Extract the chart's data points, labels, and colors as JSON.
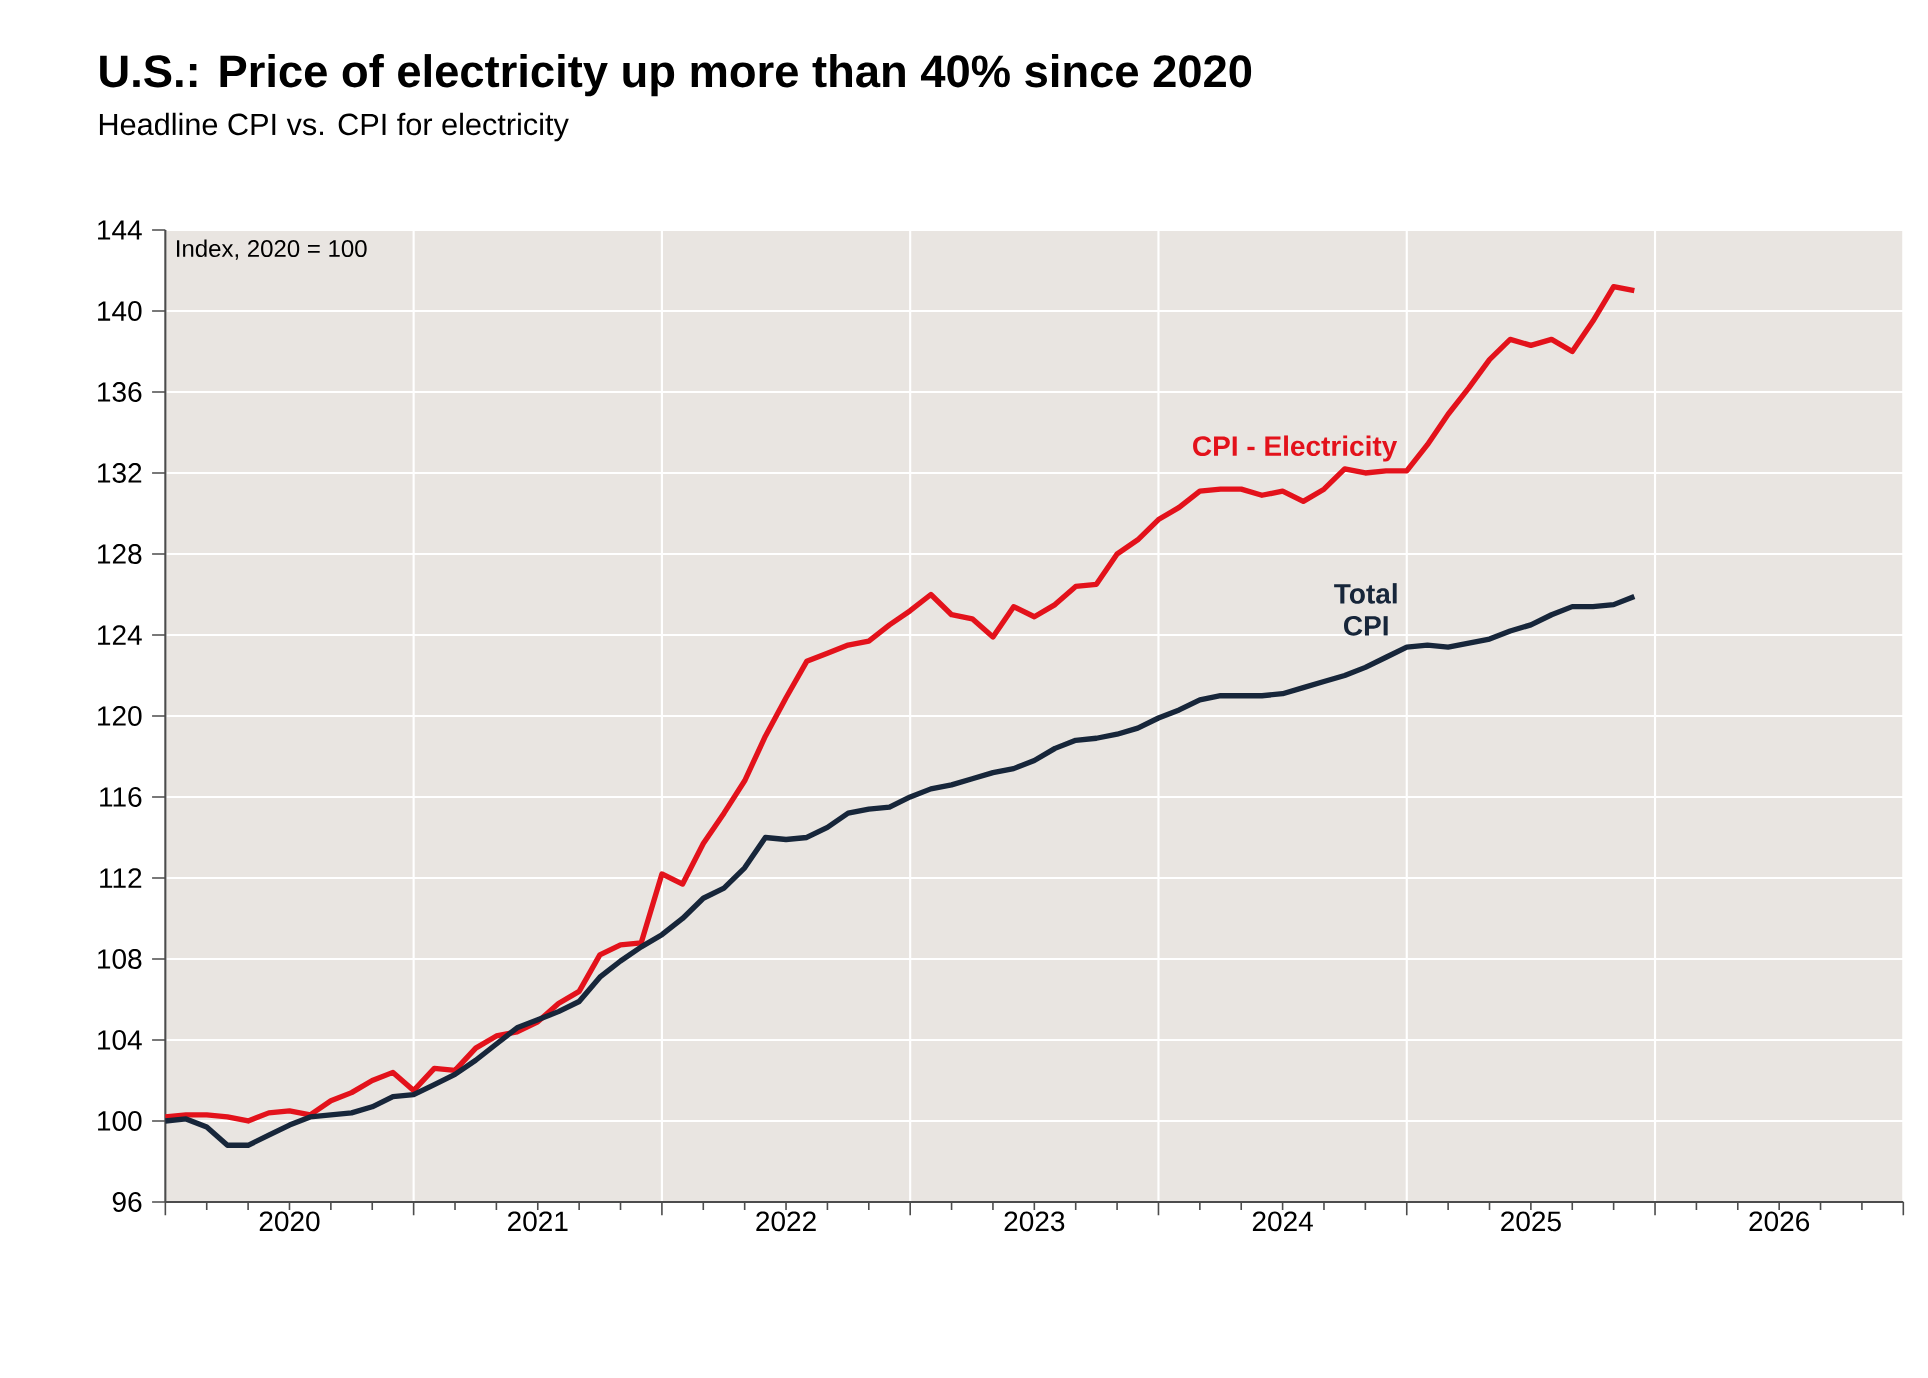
{
  "chart_data": {
    "type": "line",
    "title": "U.S.: Price of electricity up more than 40% since 2020",
    "subtitle": "Headline CPI vs. CPI for electricity",
    "annotations": [
      "Index, 2020 = 100"
    ],
    "x": [
      "2020-01",
      "2020-02",
      "2020-03",
      "2020-04",
      "2020-05",
      "2020-06",
      "2020-07",
      "2020-08",
      "2020-09",
      "2020-10",
      "2020-11",
      "2020-12",
      "2021-01",
      "2021-02",
      "2021-03",
      "2021-04",
      "2021-05",
      "2021-06",
      "2021-07",
      "2021-08",
      "2021-09",
      "2021-10",
      "2021-11",
      "2021-12",
      "2022-01",
      "2022-02",
      "2022-03",
      "2022-04",
      "2022-05",
      "2022-06",
      "2022-07",
      "2022-08",
      "2022-09",
      "2022-10",
      "2022-11",
      "2022-12",
      "2023-01",
      "2023-02",
      "2023-03",
      "2023-04",
      "2023-05",
      "2023-06",
      "2023-07",
      "2023-08",
      "2023-09",
      "2023-10",
      "2023-11",
      "2023-12",
      "2024-01",
      "2024-02",
      "2024-03",
      "2024-04",
      "2024-05",
      "2024-06",
      "2024-07",
      "2024-08",
      "2024-09",
      "2024-10",
      "2024-11",
      "2024-12",
      "2025-01",
      "2025-02",
      "2025-03",
      "2025-04",
      "2025-05",
      "2025-06",
      "2025-07",
      "2025-08",
      "2025-09",
      "2025-10",
      "2025-11",
      "2025-12"
    ],
    "series": [
      {
        "name": "CPI - Electricity",
        "color": "#e3121b",
        "values": [
          100.2,
          100.3,
          100.3,
          100.2,
          100.0,
          100.4,
          100.5,
          100.3,
          101.0,
          101.4,
          102.0,
          102.4,
          101.5,
          102.6,
          102.5,
          103.6,
          104.2,
          104.4,
          104.9,
          105.8,
          106.4,
          108.2,
          108.7,
          108.8,
          112.2,
          111.7,
          113.7,
          115.2,
          116.8,
          119.0,
          120.9,
          122.7,
          123.1,
          123.5,
          123.7,
          124.5,
          125.2,
          126.0,
          125.0,
          124.8,
          123.9,
          125.4,
          124.9,
          125.5,
          126.4,
          126.5,
          128.0,
          128.7,
          129.7,
          130.3,
          131.1,
          131.2,
          131.2,
          130.9,
          131.1,
          130.6,
          131.2,
          132.2,
          132.0,
          132.1,
          132.1,
          133.4,
          134.9,
          136.2,
          137.6,
          138.6,
          138.3,
          138.6,
          138.0,
          139.5,
          141.2,
          141.0
        ]
      },
      {
        "name": "Total CPI",
        "color": "#17263a",
        "values": [
          100.0,
          100.1,
          99.7,
          98.8,
          98.8,
          99.3,
          99.8,
          100.2,
          100.3,
          100.4,
          100.7,
          101.2,
          101.3,
          101.8,
          102.3,
          103.0,
          103.8,
          104.6,
          105.0,
          105.4,
          105.9,
          107.1,
          107.9,
          108.6,
          109.2,
          110.0,
          111.0,
          111.5,
          112.5,
          114.0,
          113.9,
          114.0,
          114.5,
          115.2,
          115.4,
          115.5,
          116.0,
          116.4,
          116.6,
          116.9,
          117.2,
          117.4,
          117.8,
          118.4,
          118.8,
          118.9,
          119.1,
          119.4,
          119.9,
          120.3,
          120.8,
          121.0,
          121.0,
          121.0,
          121.1,
          121.4,
          121.7,
          122.0,
          122.4,
          122.9,
          123.4,
          123.5,
          123.4,
          123.6,
          123.8,
          124.2,
          124.5,
          125.0,
          125.4,
          125.4,
          125.5,
          125.9
        ]
      }
    ],
    "xlim": [
      "2020-01",
      "2027-01"
    ],
    "xticks": [
      {
        "value": "2020-01",
        "label": null
      },
      {
        "value": "2020-07",
        "label": "2020"
      },
      {
        "value": "2021-01",
        "label": null
      },
      {
        "value": "2021-07",
        "label": "2021"
      },
      {
        "value": "2022-01",
        "label": null
      },
      {
        "value": "2022-07",
        "label": "2022"
      },
      {
        "value": "2023-01",
        "label": null
      },
      {
        "value": "2023-07",
        "label": "2023"
      },
      {
        "value": "2024-01",
        "label": null
      },
      {
        "value": "2024-07",
        "label": "2024"
      },
      {
        "value": "2025-01",
        "label": null
      },
      {
        "value": "2025-07",
        "label": "2025"
      },
      {
        "value": "2026-01",
        "label": null
      },
      {
        "value": "2026-07",
        "label": "2026"
      },
      {
        "value": "2027-01",
        "label": null
      }
    ],
    "ylim": [
      96,
      144
    ],
    "yticks": [
      96,
      100,
      104,
      108,
      112,
      116,
      120,
      124,
      128,
      132,
      136,
      140,
      144
    ],
    "grid": true,
    "legend": false,
    "marker": "none",
    "line_style": "solid"
  }
}
